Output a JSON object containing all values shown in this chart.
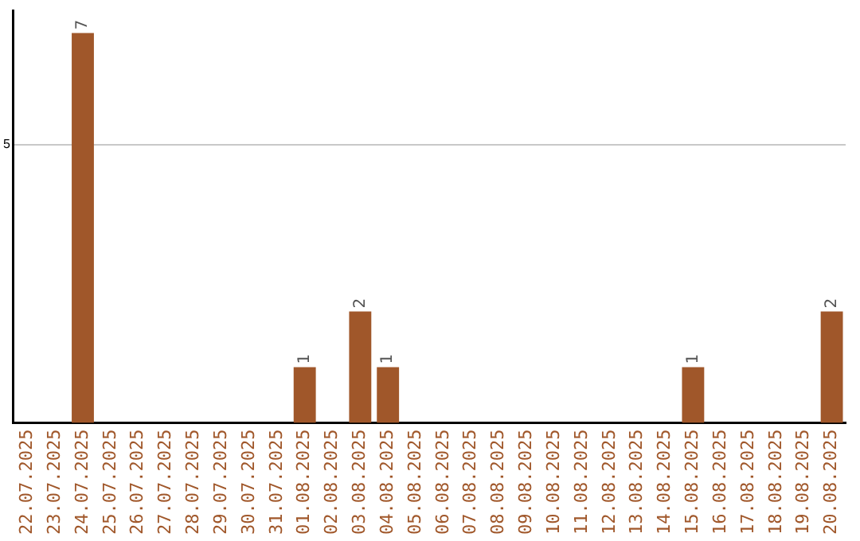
{
  "chart_data": {
    "type": "bar",
    "categories": [
      "22.07.2025",
      "23.07.2025",
      "24.07.2025",
      "25.07.2025",
      "26.07.2025",
      "27.07.2025",
      "28.07.2025",
      "29.07.2025",
      "30.07.2025",
      "31.07.2025",
      "01.08.2025",
      "02.08.2025",
      "03.08.2025",
      "04.08.2025",
      "05.08.2025",
      "06.08.2025",
      "07.08.2025",
      "08.08.2025",
      "09.08.2025",
      "10.08.2025",
      "11.08.2025",
      "12.08.2025",
      "13.08.2025",
      "14.08.2025",
      "15.08.2025",
      "16.08.2025",
      "17.08.2025",
      "18.08.2025",
      "19.08.2025",
      "20.08.2025"
    ],
    "values": [
      0,
      0,
      7,
      0,
      0,
      0,
      0,
      0,
      0,
      0,
      1,
      0,
      2,
      1,
      0,
      0,
      0,
      0,
      0,
      0,
      0,
      0,
      0,
      0,
      1,
      0,
      0,
      0,
      0,
      2
    ],
    "value_labels": [
      null,
      null,
      "7",
      null,
      null,
      null,
      null,
      null,
      null,
      null,
      "1",
      null,
      "2",
      "1",
      null,
      null,
      null,
      null,
      null,
      null,
      null,
      null,
      null,
      null,
      "1",
      null,
      null,
      null,
      null,
      "2"
    ],
    "color": "#a0572a",
    "ylim": [
      0,
      7.4
    ],
    "yticks": [
      5
    ],
    "grid": "y"
  }
}
